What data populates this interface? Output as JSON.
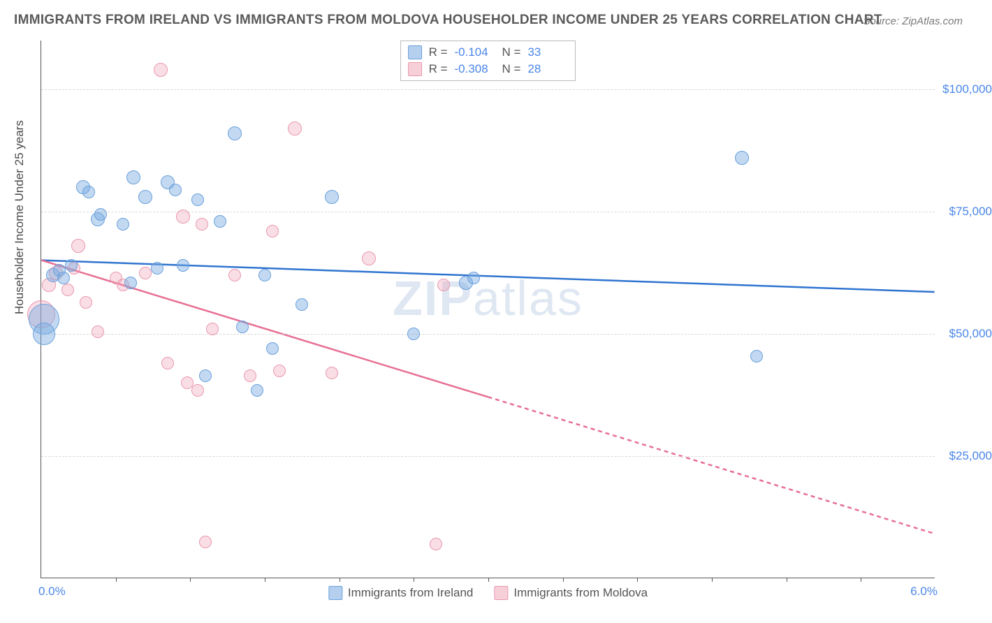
{
  "title": "IMMIGRANTS FROM IRELAND VS IMMIGRANTS FROM MOLDOVA HOUSEHOLDER INCOME UNDER 25 YEARS CORRELATION CHART",
  "source": "Source: ZipAtlas.com",
  "y_axis_label": "Householder Income Under 25 years",
  "watermark": "ZIPatlas",
  "colors": {
    "blue_fill": "rgba(120,170,225,0.45)",
    "blue_stroke": "#6aa0dc",
    "pink_fill": "rgba(240,160,180,0.35)",
    "pink_stroke": "#e898af",
    "trend_blue": "#2f74d0",
    "trend_pink": "#e76f93",
    "grid": "#d8d8d8",
    "text_axis": "#4a86e8"
  },
  "x": {
    "min": 0.0,
    "max": 6.0,
    "label_min": "0.0%",
    "label_max": "6.0%",
    "ticks": [
      0.5,
      1.0,
      1.5,
      2.0,
      2.5,
      3.0,
      3.5,
      4.0,
      4.5,
      5.0,
      5.5
    ]
  },
  "y": {
    "min": 0,
    "max": 110000,
    "gridlines": [
      {
        "v": 25000,
        "label": "$25,000"
      },
      {
        "v": 50000,
        "label": "$50,000"
      },
      {
        "v": 75000,
        "label": "$75,000"
      },
      {
        "v": 100000,
        "label": "$100,000"
      }
    ]
  },
  "legend_top": {
    "rows": [
      {
        "series": "blue",
        "r_label": "R =",
        "r_value": "-0.104",
        "n_label": "N =",
        "n_value": "33"
      },
      {
        "series": "pink",
        "r_label": "R =",
        "r_value": "-0.308",
        "n_label": "N =",
        "n_value": "28"
      }
    ]
  },
  "legend_bottom": {
    "items": [
      {
        "series": "blue",
        "label": "Immigrants from Ireland"
      },
      {
        "series": "pink",
        "label": "Immigrants from Moldova"
      }
    ]
  },
  "trend_lines": {
    "blue": {
      "y_at_xmin": 65000,
      "y_at_xmax": 58500,
      "dash_from_x": null
    },
    "pink": {
      "y_at_xmin": 65000,
      "y_at_xmax": 9000,
      "dash_from_x": 3.0
    }
  },
  "series": {
    "blue": [
      {
        "x": 0.02,
        "y": 53000,
        "r": 22
      },
      {
        "x": 0.02,
        "y": 50000,
        "r": 16
      },
      {
        "x": 0.08,
        "y": 62000,
        "r": 10
      },
      {
        "x": 0.12,
        "y": 63000,
        "r": 9
      },
      {
        "x": 0.15,
        "y": 61500,
        "r": 9
      },
      {
        "x": 0.2,
        "y": 64000,
        "r": 9
      },
      {
        "x": 0.28,
        "y": 80000,
        "r": 10
      },
      {
        "x": 0.32,
        "y": 79000,
        "r": 9
      },
      {
        "x": 0.38,
        "y": 73500,
        "r": 10
      },
      {
        "x": 0.4,
        "y": 74500,
        "r": 9
      },
      {
        "x": 0.55,
        "y": 72500,
        "r": 9
      },
      {
        "x": 0.62,
        "y": 82000,
        "r": 10
      },
      {
        "x": 0.6,
        "y": 60500,
        "r": 9
      },
      {
        "x": 0.7,
        "y": 78000,
        "r": 10
      },
      {
        "x": 0.78,
        "y": 63500,
        "r": 9
      },
      {
        "x": 0.85,
        "y": 81000,
        "r": 10
      },
      {
        "x": 0.9,
        "y": 79500,
        "r": 9
      },
      {
        "x": 0.95,
        "y": 64000,
        "r": 9
      },
      {
        "x": 1.05,
        "y": 77500,
        "r": 9
      },
      {
        "x": 1.1,
        "y": 41500,
        "r": 9
      },
      {
        "x": 1.2,
        "y": 73000,
        "r": 9
      },
      {
        "x": 1.3,
        "y": 91000,
        "r": 10
      },
      {
        "x": 1.35,
        "y": 51500,
        "r": 9
      },
      {
        "x": 1.45,
        "y": 38500,
        "r": 9
      },
      {
        "x": 1.5,
        "y": 62000,
        "r": 9
      },
      {
        "x": 1.55,
        "y": 47000,
        "r": 9
      },
      {
        "x": 1.75,
        "y": 56000,
        "r": 9
      },
      {
        "x": 1.95,
        "y": 78000,
        "r": 10
      },
      {
        "x": 2.5,
        "y": 50000,
        "r": 9
      },
      {
        "x": 2.85,
        "y": 60500,
        "r": 10
      },
      {
        "x": 2.9,
        "y": 61500,
        "r": 9
      },
      {
        "x": 4.7,
        "y": 86000,
        "r": 10
      },
      {
        "x": 4.8,
        "y": 45500,
        "r": 9
      }
    ],
    "pink": [
      {
        "x": 0.0,
        "y": 54000,
        "r": 20
      },
      {
        "x": 0.05,
        "y": 60000,
        "r": 10
      },
      {
        "x": 0.1,
        "y": 62500,
        "r": 10
      },
      {
        "x": 0.18,
        "y": 59000,
        "r": 9
      },
      {
        "x": 0.22,
        "y": 63500,
        "r": 9
      },
      {
        "x": 0.25,
        "y": 68000,
        "r": 10
      },
      {
        "x": 0.3,
        "y": 56500,
        "r": 9
      },
      {
        "x": 0.38,
        "y": 50500,
        "r": 9
      },
      {
        "x": 0.5,
        "y": 61500,
        "r": 9
      },
      {
        "x": 0.55,
        "y": 60000,
        "r": 9
      },
      {
        "x": 0.7,
        "y": 62500,
        "r": 9
      },
      {
        "x": 0.8,
        "y": 104000,
        "r": 10
      },
      {
        "x": 0.85,
        "y": 44000,
        "r": 9
      },
      {
        "x": 0.95,
        "y": 74000,
        "r": 10
      },
      {
        "x": 0.98,
        "y": 40000,
        "r": 9
      },
      {
        "x": 1.05,
        "y": 38500,
        "r": 9
      },
      {
        "x": 1.08,
        "y": 72500,
        "r": 9
      },
      {
        "x": 1.1,
        "y": 7500,
        "r": 9
      },
      {
        "x": 1.15,
        "y": 51000,
        "r": 9
      },
      {
        "x": 1.3,
        "y": 62000,
        "r": 9
      },
      {
        "x": 1.4,
        "y": 41500,
        "r": 9
      },
      {
        "x": 1.55,
        "y": 71000,
        "r": 9
      },
      {
        "x": 1.6,
        "y": 42500,
        "r": 9
      },
      {
        "x": 1.7,
        "y": 92000,
        "r": 10
      },
      {
        "x": 1.95,
        "y": 42000,
        "r": 9
      },
      {
        "x": 2.2,
        "y": 65500,
        "r": 10
      },
      {
        "x": 2.65,
        "y": 7000,
        "r": 9
      },
      {
        "x": 2.7,
        "y": 60000,
        "r": 9
      }
    ]
  }
}
